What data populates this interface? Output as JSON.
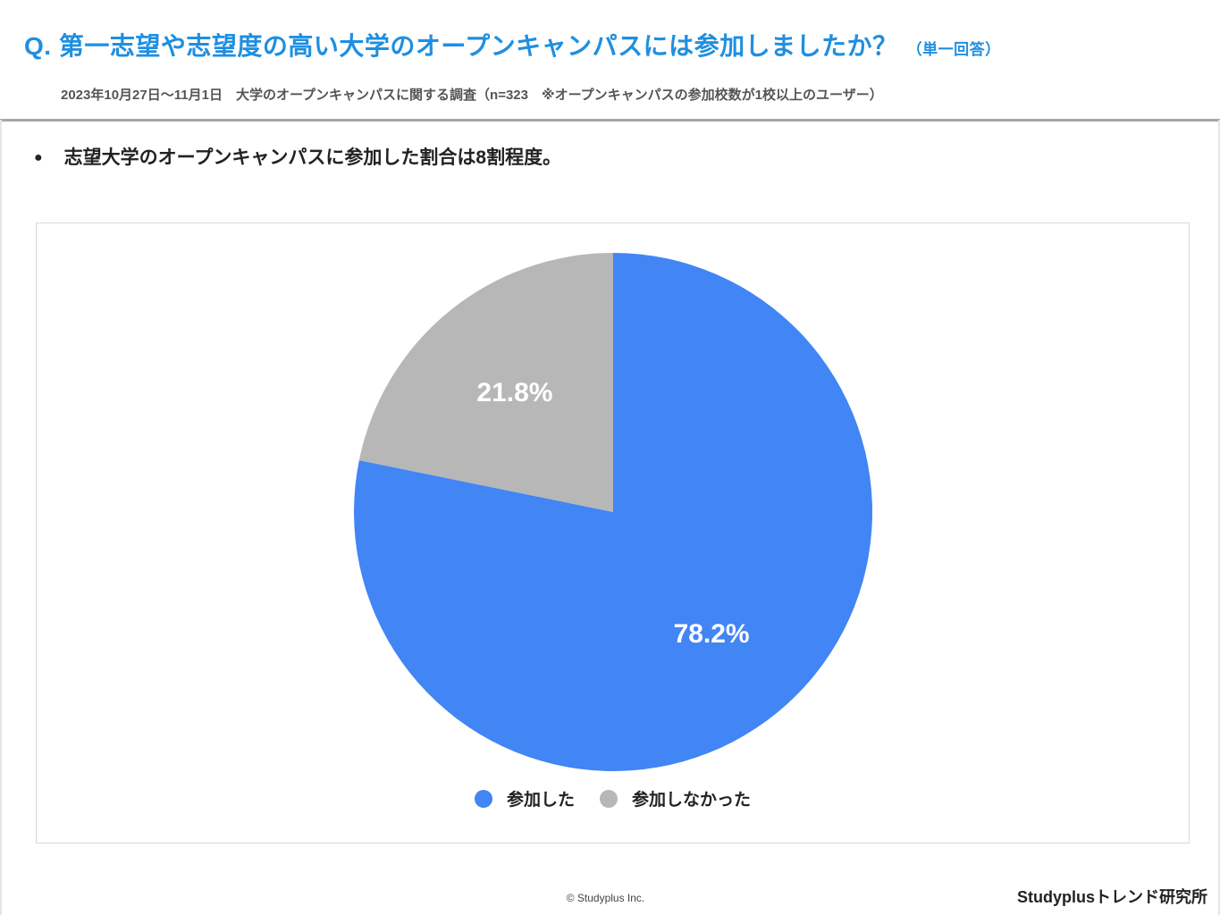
{
  "header": {
    "title": "Q. 第一志望や志望度の高い大学のオープンキャンパスには参加しましたか？",
    "title_note": "（単一回答）",
    "subtitle": "2023年10月27日〜11月1日　大学のオープンキャンパスに関する調査（n=323　※オープンキャンパスの参加校数が1校以上のユーザー）"
  },
  "summary": {
    "bullet_icon": "●",
    "text": "志望大学のオープンキャンパスに参加した割合は8割程度。"
  },
  "chart_data": {
    "type": "pie",
    "title": "",
    "legend_position": "bottom-center",
    "slices": [
      {
        "label": "参加した",
        "value": 78.2,
        "display": "78.2%",
        "color": "#4285f4"
      },
      {
        "label": "参加しなかった",
        "value": 21.8,
        "display": "21.8%",
        "color": "#b7b7b7"
      }
    ]
  },
  "footer": {
    "copyright": "© Studyplus Inc.",
    "brand": "Studyplusトレンド研究所"
  }
}
